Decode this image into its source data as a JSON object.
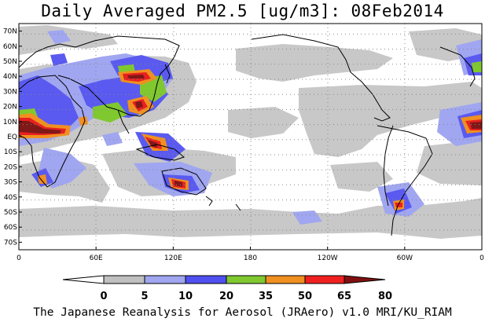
{
  "title": "Daily Averaged PM2.5 [ug/m3]: 08Feb2014",
  "footer": "The Japanese Reanalysis for Aerosol (JRAero) v1.0 MRI/KU_RIAM",
  "map": {
    "longitude_range": [
      0,
      360
    ],
    "latitude_range": [
      -75,
      75
    ],
    "lat_labels": [
      {
        "lat": 70,
        "text": "70N"
      },
      {
        "lat": 60,
        "text": "60N"
      },
      {
        "lat": 50,
        "text": "50N"
      },
      {
        "lat": 40,
        "text": "40N"
      },
      {
        "lat": 30,
        "text": "30N"
      },
      {
        "lat": 20,
        "text": "20N"
      },
      {
        "lat": 10,
        "text": "10N"
      },
      {
        "lat": 0,
        "text": "EQ"
      },
      {
        "lat": -10,
        "text": "10S"
      },
      {
        "lat": -20,
        "text": "20S"
      },
      {
        "lat": -30,
        "text": "30S"
      },
      {
        "lat": -40,
        "text": "40S"
      },
      {
        "lat": -50,
        "text": "50S"
      },
      {
        "lat": -60,
        "text": "60S"
      },
      {
        "lat": -70,
        "text": "70S"
      }
    ],
    "lon_labels": [
      {
        "lon": 0,
        "text": "0"
      },
      {
        "lon": 60,
        "text": "60E"
      },
      {
        "lon": 120,
        "text": "120E"
      },
      {
        "lon": 180,
        "text": "180"
      },
      {
        "lon": 240,
        "text": "120W"
      },
      {
        "lon": 300,
        "text": "60W"
      },
      {
        "lon": 360,
        "text": "0"
      }
    ],
    "gridlines": "dotted"
  },
  "colorbar": {
    "levels": [
      "0",
      "5",
      "10",
      "20",
      "35",
      "50",
      "65",
      "80"
    ],
    "colors": [
      "#ffffff",
      "#c0c0c0",
      "#a0a6f0",
      "#5050f0",
      "#80c830",
      "#f09020",
      "#f02020",
      "#801010"
    ],
    "open_ends": true
  },
  "colors": {
    "ocean": "#ffffff",
    "coast": "#000000",
    "level_5": "#c8c8c8",
    "level_10": "#a0a6f0",
    "level_20": "#5a5af0",
    "level_35": "#80c830",
    "level_50": "#f09020",
    "level_65": "#e82020",
    "level_80": "#801818"
  }
}
